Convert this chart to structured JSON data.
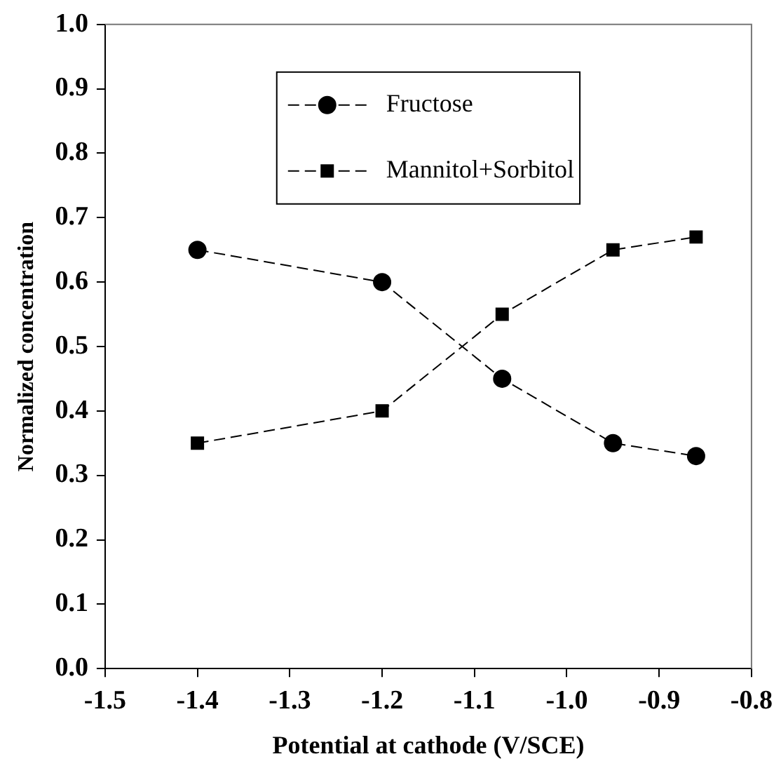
{
  "chart_data": {
    "type": "line",
    "xlabel": "Potential at cathode (V/SCE)",
    "ylabel": "Normalized concentration",
    "x": [
      -1.4,
      -1.2,
      -1.07,
      -0.95,
      -0.86
    ],
    "series": [
      {
        "name": "Fructose",
        "color": "#000000",
        "values": [
          0.65,
          0.6,
          0.45,
          0.35,
          0.33
        ],
        "marker": "circle"
      },
      {
        "name": "Mannitol+Sorbitol",
        "color": "#000000",
        "values": [
          0.35,
          0.4,
          0.55,
          0.65,
          0.67
        ],
        "marker": "square"
      }
    ],
    "xlim": [
      -1.5,
      -0.8
    ],
    "xticks": [
      {
        "value": -1.5,
        "label": "-1.5"
      },
      {
        "value": -1.4,
        "label": "-1.4"
      },
      {
        "value": -1.3,
        "label": "-1.3"
      },
      {
        "value": -1.2,
        "label": "-1.2"
      },
      {
        "value": -1.1,
        "label": "-1.1"
      },
      {
        "value": -1.0,
        "label": "-1.0"
      },
      {
        "value": -0.9,
        "label": "-0.9"
      },
      {
        "value": -0.8,
        "label": "-0.8"
      }
    ],
    "ylim": [
      0,
      1
    ],
    "yticks": [
      {
        "value": 0,
        "label": "0.0"
      },
      {
        "value": 0.1,
        "label": "0.1"
      },
      {
        "value": 0.2,
        "label": "0.2"
      },
      {
        "value": 0.3,
        "label": "0.3"
      },
      {
        "value": 0.4,
        "label": "0.4"
      },
      {
        "value": 0.5,
        "label": "0.5"
      },
      {
        "value": 0.6,
        "label": "0.6"
      },
      {
        "value": 0.7,
        "label": "0.7"
      },
      {
        "value": 0.8,
        "label": "0.8"
      },
      {
        "value": 0.9,
        "label": "0.9"
      },
      {
        "value": 1.0,
        "label": "1.0"
      }
    ],
    "grid": false,
    "legend": "top",
    "line_style": "dashed"
  }
}
